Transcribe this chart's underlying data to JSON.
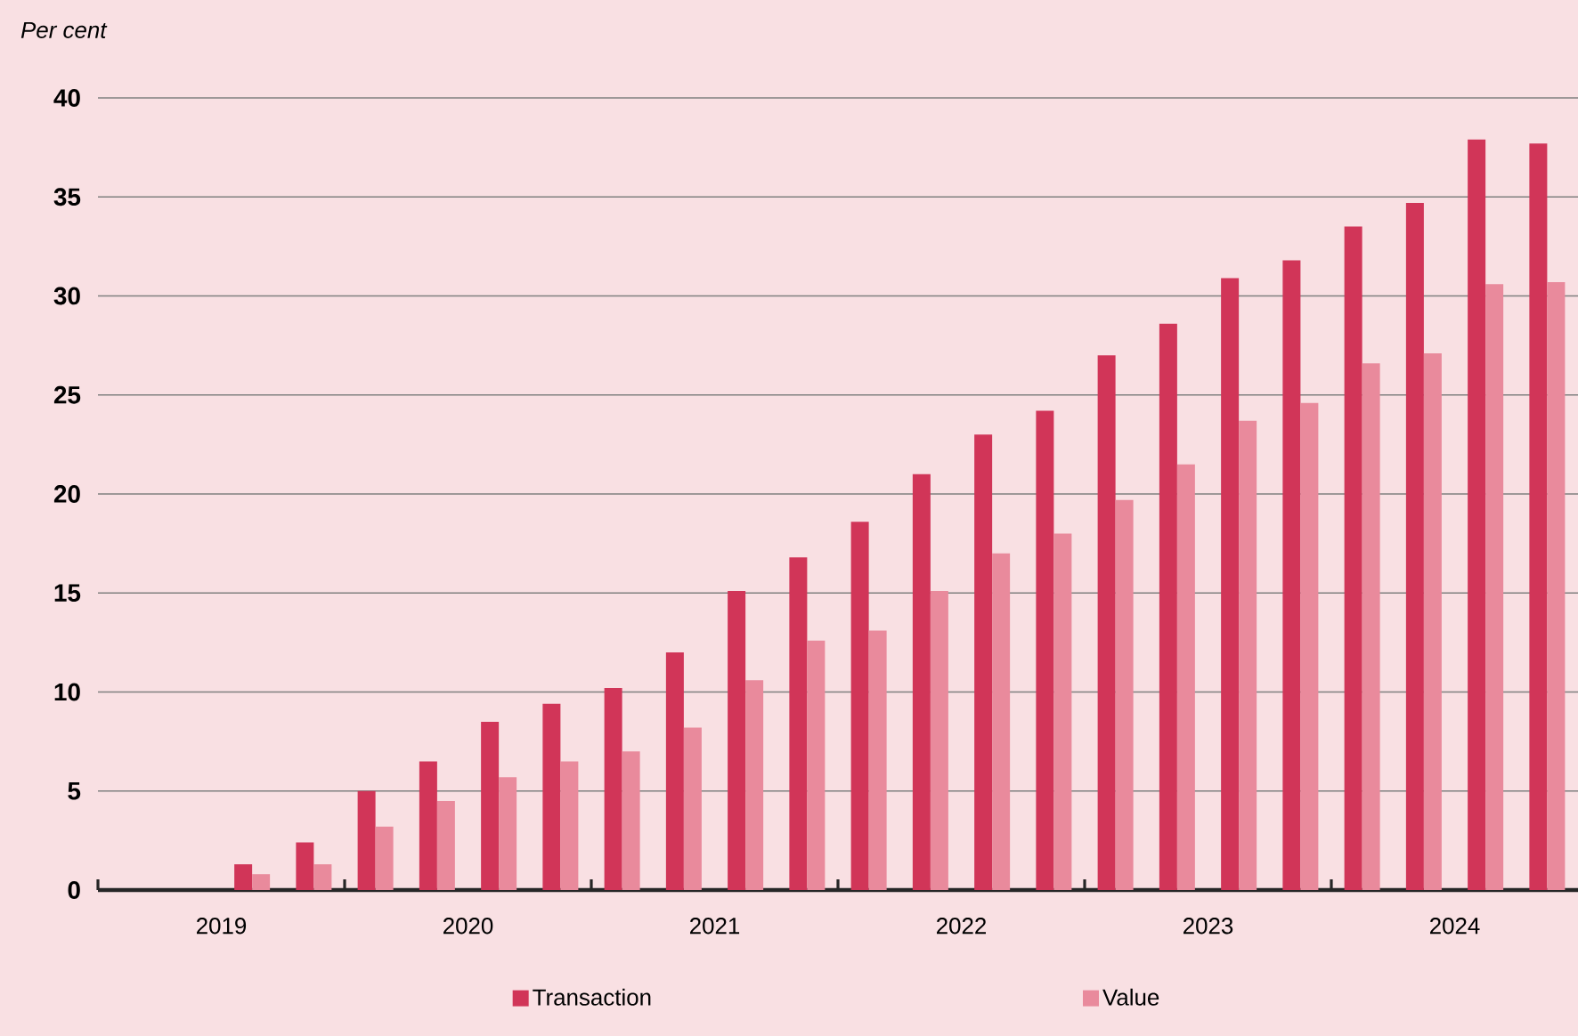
{
  "chart_data": {
    "type": "bar",
    "ylabel": "Per cent",
    "x": [
      2019.125,
      2019.375,
      2019.625,
      2019.875,
      2020.125,
      2020.375,
      2020.625,
      2020.875,
      2021.125,
      2021.375,
      2021.625,
      2021.875,
      2022.125,
      2022.375,
      2022.625,
      2022.875,
      2023.125,
      2023.375,
      2023.625,
      2023.875,
      2024.125,
      2024.375,
      2024.625,
      2024.875
    ],
    "series": [
      {
        "name": "Transaction",
        "color": "#d13558",
        "values": [
          0,
          0,
          1.3,
          2.4,
          5.0,
          6.5,
          8.5,
          9.4,
          10.2,
          12.0,
          15.1,
          16.8,
          18.6,
          21.0,
          23.0,
          24.2,
          27.0,
          28.6,
          30.9,
          31.8,
          33.5,
          34.7,
          37.9,
          37.7
        ]
      },
      {
        "name": "Value",
        "color": "#e98a9c",
        "values": [
          0,
          0,
          0.8,
          1.3,
          3.2,
          4.5,
          5.7,
          6.5,
          7.0,
          8.2,
          10.6,
          12.6,
          13.1,
          15.1,
          17.0,
          18.0,
          19.7,
          21.5,
          23.7,
          24.6,
          26.6,
          27.1,
          30.6,
          30.7
        ]
      }
    ],
    "xlim": [
      2019,
      2025
    ],
    "xticks": [
      {
        "value": 2019,
        "label": null
      },
      {
        "value": 2020,
        "label": null
      },
      {
        "value": 2021,
        "label": null
      },
      {
        "value": 2022,
        "label": null
      },
      {
        "value": 2023,
        "label": null
      },
      {
        "value": 2024,
        "label": null
      },
      {
        "value": 2019.5,
        "label": "2019"
      },
      {
        "value": 2020.5,
        "label": "2020"
      },
      {
        "value": 2021.5,
        "label": "2021"
      },
      {
        "value": 2022.5,
        "label": "2022"
      },
      {
        "value": 2023.5,
        "label": "2023"
      },
      {
        "value": 2024.5,
        "label": "2024"
      }
    ],
    "ylim": [
      0,
      40
    ],
    "yticks": [
      0,
      5,
      10,
      15,
      20,
      25,
      30,
      35,
      40
    ],
    "grid": "y",
    "legend": "bottom"
  }
}
